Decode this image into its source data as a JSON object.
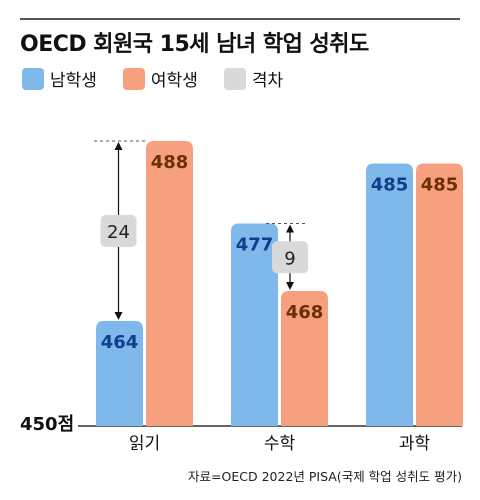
{
  "header": {
    "title": "OECD 회원국 15세 남녀 학업 성취도"
  },
  "legend": [
    {
      "label": "남학생",
      "color": "#7fb8ea"
    },
    {
      "label": "여학생",
      "color": "#f7a07f"
    },
    {
      "label": "격차",
      "color": "#d9d9d9"
    }
  ],
  "chart_data": {
    "type": "bar",
    "categories": [
      "읽기",
      "수학",
      "과학"
    ],
    "series": [
      {
        "name": "남학생",
        "values": [
          464,
          477,
          485
        ],
        "color": "#7fb8ea",
        "label_color": "#0d3f8c"
      },
      {
        "name": "여학생",
        "values": [
          488,
          468,
          485
        ],
        "color": "#f7a07f",
        "label_color": "#6b2f06"
      }
    ],
    "gaps": [
      {
        "category": "읽기",
        "value": 24
      },
      {
        "category": "수학",
        "value": 9
      }
    ],
    "baseline_label": "450점",
    "ylim": [
      450,
      490
    ],
    "grid": false,
    "legend_position": "top-left"
  },
  "footer": {
    "source": "자료=OECD 2022년 PISA(국제 학업 성취도 평가)"
  }
}
